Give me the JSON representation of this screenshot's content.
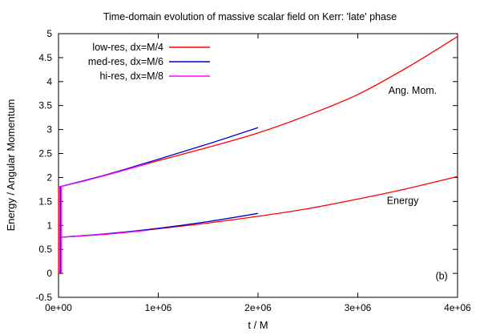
{
  "chart_data": {
    "type": "line",
    "title": "Time-domain evolution of massive scalar field on Kerr: 'late' phase",
    "xlabel": "t / M",
    "ylabel": "Energy / Angular Momentum",
    "xlim": [
      0,
      4000000
    ],
    "ylim": [
      -0.5,
      5
    ],
    "x_ticks": [
      0,
      1000000,
      2000000,
      3000000,
      4000000
    ],
    "x_tick_labels": [
      "0e+00",
      "1e+06",
      "2e+06",
      "3e+06",
      "4e+06"
    ],
    "y_ticks": [
      -0.5,
      0,
      0.5,
      1,
      1.5,
      2,
      2.5,
      3,
      3.5,
      4,
      4.5,
      5
    ],
    "y_tick_labels": [
      "-0.5",
      "0",
      "0.5",
      "1",
      "1.5",
      "2",
      "2.5",
      "3",
      "3.5",
      "4",
      "4.5",
      "5"
    ],
    "grid": false,
    "legend_position": "top-left",
    "series": [
      {
        "name": "low-res, dx=M/4",
        "color": "#ff0000",
        "curves": [
          {
            "x": [
              0,
              500000,
              1000000,
              1500000,
              2000000,
              2500000,
              3000000,
              3500000,
              4000000
            ],
            "y": [
              1.8,
              2.06,
              2.35,
              2.63,
              2.93,
              3.3,
              3.73,
              4.3,
              4.94
            ]
          },
          {
            "x": [
              0,
              500000,
              1000000,
              1500000,
              2000000,
              2500000,
              3000000,
              3500000,
              4000000
            ],
            "y": [
              0.75,
              0.82,
              0.93,
              1.05,
              1.19,
              1.35,
              1.55,
              1.77,
              2.02
            ]
          }
        ]
      },
      {
        "name": "med-res, dx=M/6",
        "color": "#0000cc",
        "curves": [
          {
            "x": [
              0,
              500000,
              1000000,
              1500000,
              2000000
            ],
            "y": [
              1.8,
              2.07,
              2.38,
              2.7,
              3.04
            ]
          },
          {
            "x": [
              0,
              500000,
              1000000,
              1500000,
              2000000
            ],
            "y": [
              0.75,
              0.83,
              0.94,
              1.08,
              1.25
            ]
          }
        ]
      },
      {
        "name": "hi-res, dx=M/8",
        "color": "#ff00ff",
        "curves": [
          {
            "x": [
              0,
              300000,
              600000,
              900000
            ],
            "y": [
              1.8,
              1.95,
              2.12,
              2.3
            ]
          },
          {
            "x": [
              0,
              300000,
              600000,
              900000
            ],
            "y": [
              0.75,
              0.79,
              0.84,
              0.9
            ]
          }
        ]
      }
    ],
    "initial_spike": {
      "x": [
        0,
        10000,
        20000,
        30000
      ],
      "top_y": 1.8,
      "bottom_y": 0,
      "mid_y": 0.75
    },
    "annotations": [
      {
        "text": "Ang. Mom.",
        "x": 3550000,
        "y": 3.75
      },
      {
        "text": "Energy",
        "x": 3450000,
        "y": 1.45
      },
      {
        "text": "(b)",
        "x": 3840000,
        "y": -0.12
      }
    ]
  }
}
